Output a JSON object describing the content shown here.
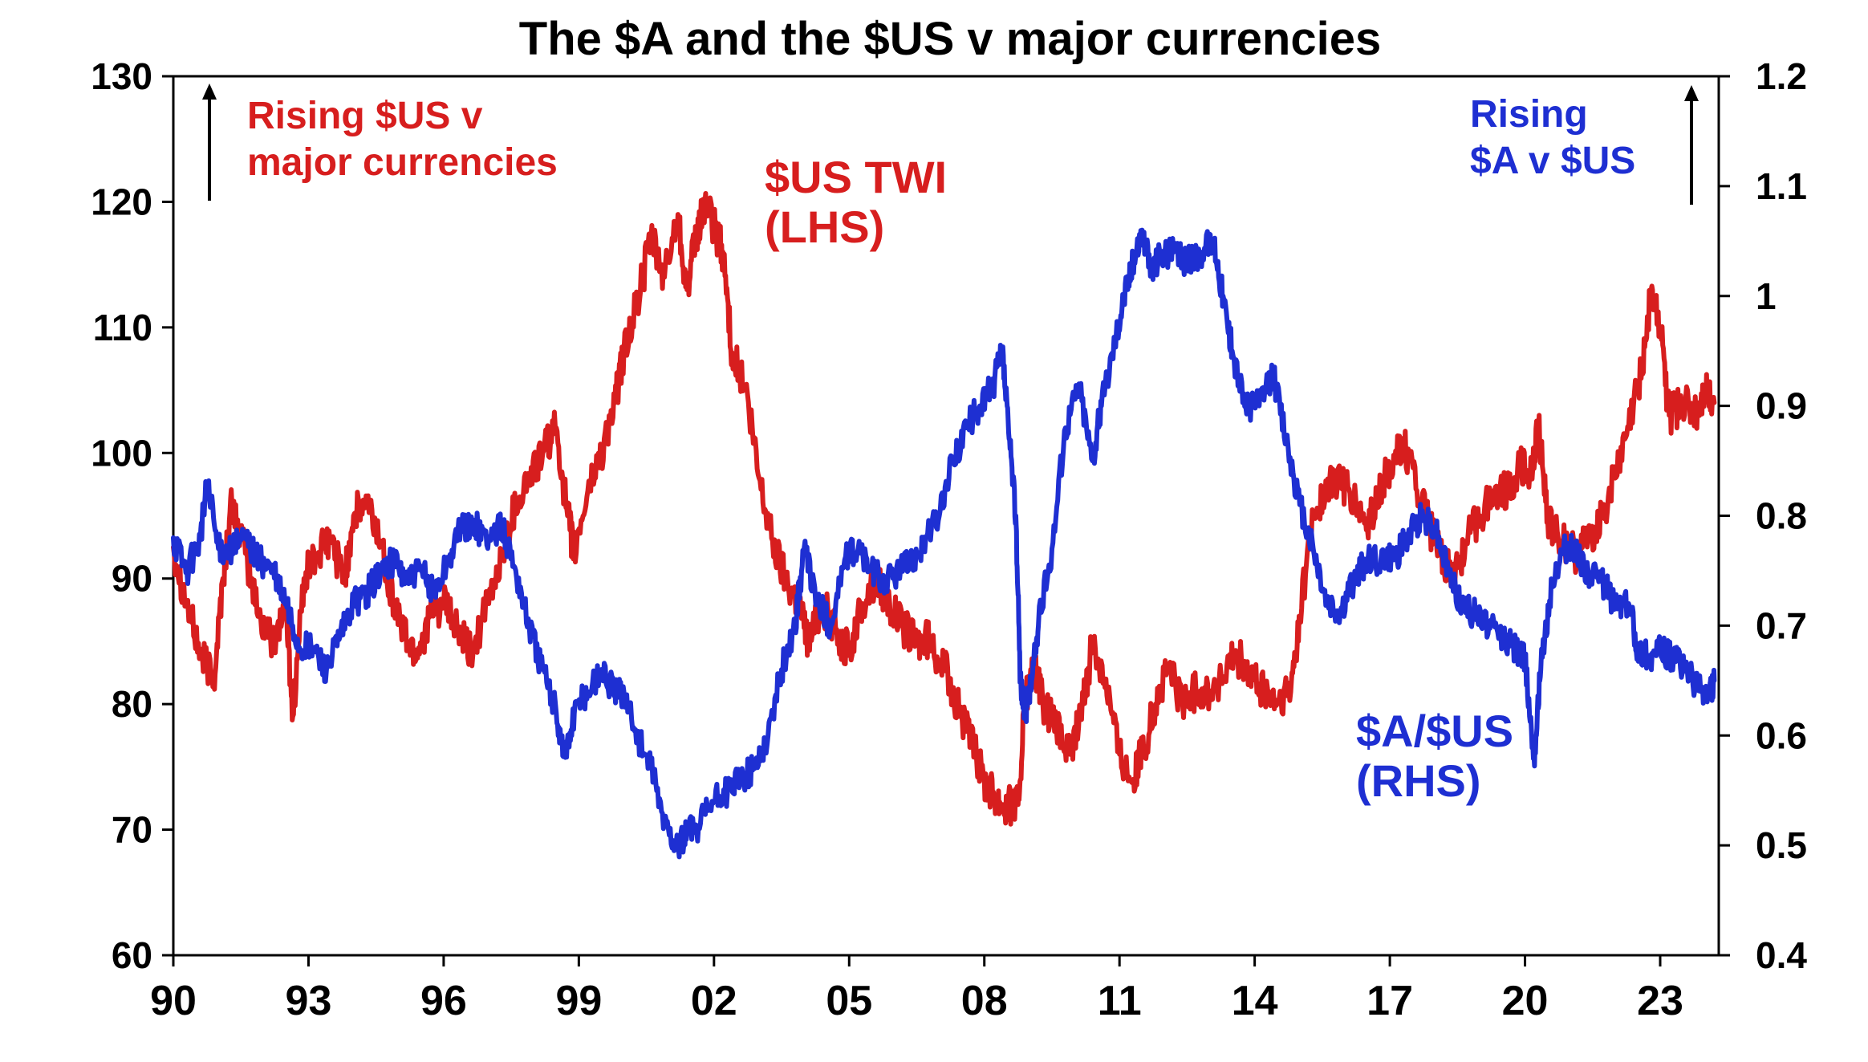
{
  "colors": {
    "usd_twi": "#d71e1e",
    "aud_usd": "#1e2fd2",
    "axis": "#000000"
  },
  "chart_data": {
    "type": "line",
    "title": "The $A and the $US v major currencies",
    "x_tick_labels": [
      "90",
      "93",
      "96",
      "99",
      "02",
      "05",
      "08",
      "11",
      "14",
      "17",
      "20",
      "23"
    ],
    "x_tick_years": [
      1990,
      1993,
      1996,
      1999,
      2002,
      2005,
      2008,
      2011,
      2014,
      2017,
      2020,
      2023
    ],
    "xlim": [
      1990,
      2024.3
    ],
    "y_left": {
      "ylim": [
        60,
        130
      ],
      "ticks": [
        "130",
        "120",
        "110",
        "100",
        "90",
        "80",
        "70",
        "60"
      ]
    },
    "y_right": {
      "ylim": [
        0.4,
        1.2
      ],
      "ticks": [
        "1.2",
        "1.1",
        "1",
        "0.9",
        "0.8",
        "0.7",
        "0.6",
        "0.5",
        "0.4"
      ]
    },
    "series": [
      {
        "name": "$US TWI (LHS)",
        "label_lines": [
          "$US TWI",
          "(LHS)"
        ],
        "axis": "left",
        "x": [
          1990.0,
          1990.3,
          1990.6,
          1990.9,
          1991.1,
          1991.3,
          1991.6,
          1991.9,
          1992.2,
          1992.5,
          1992.65,
          1992.9,
          1993.2,
          1993.5,
          1993.8,
          1994.0,
          1994.3,
          1994.6,
          1994.9,
          1995.2,
          1995.4,
          1995.7,
          1996.0,
          1996.3,
          1996.6,
          1997.0,
          1997.3,
          1997.6,
          1997.9,
          1998.2,
          1998.5,
          1998.75,
          1998.9,
          1999.2,
          1999.5,
          1999.8,
          2000.0,
          2000.3,
          2000.6,
          2000.9,
          2001.2,
          2001.4,
          2001.6,
          2001.8,
          2002.0,
          2002.2,
          2002.4,
          2002.7,
          2003.0,
          2003.3,
          2003.6,
          2003.9,
          2004.1,
          2004.4,
          2004.7,
          2005.0,
          2005.3,
          2005.6,
          2005.9,
          2006.2,
          2006.5,
          2006.8,
          2007.1,
          2007.4,
          2007.7,
          2008.0,
          2008.2,
          2008.4,
          2008.6,
          2008.75,
          2008.9,
          2009.1,
          2009.3,
          2009.6,
          2009.9,
          2010.2,
          2010.4,
          2010.7,
          2011.0,
          2011.3,
          2011.5,
          2011.8,
          2012.1,
          2012.4,
          2012.7,
          2013.0,
          2013.3,
          2013.6,
          2013.9,
          2014.2,
          2014.5,
          2014.8,
          2015.0,
          2015.3,
          2015.6,
          2015.9,
          2016.2,
          2016.5,
          2016.8,
          2017.0,
          2017.3,
          2017.6,
          2017.9,
          2018.1,
          2018.4,
          2018.7,
          2019.0,
          2019.3,
          2019.6,
          2019.9,
          2020.1,
          2020.3,
          2020.5,
          2020.8,
          2021.1,
          2021.4,
          2021.7,
          2022.0,
          2022.3,
          2022.6,
          2022.8,
          2023.0,
          2023.2,
          2023.5,
          2023.8,
          2024.0,
          2024.2
        ],
        "values": [
          92.5,
          88,
          84,
          82,
          90,
          96,
          92,
          87,
          85,
          88,
          79,
          90,
          92,
          93,
          90,
          95,
          96,
          93,
          88,
          85,
          84,
          87,
          88,
          86,
          84,
          88,
          92,
          96,
          98,
          100,
          102,
          95,
          92,
          97,
          100,
          104,
          108,
          112,
          117,
          114,
          119,
          113,
          117,
          120,
          118,
          116,
          108,
          105,
          98,
          93,
          90,
          88,
          85,
          88,
          86,
          84,
          88,
          90,
          88,
          86,
          85,
          85,
          83,
          80,
          77,
          74,
          73,
          72,
          72,
          72,
          80,
          83,
          80,
          78,
          76,
          80,
          85,
          82,
          76,
          74,
          76,
          80,
          83,
          80,
          81,
          81,
          82,
          84,
          82,
          81,
          80,
          81,
          87,
          95,
          97,
          98,
          96,
          94,
          97,
          99,
          101,
          97,
          94,
          92,
          90,
          93,
          95,
          97,
          97,
          99,
          98,
          102,
          95,
          93,
          92,
          93,
          95,
          98,
          102,
          107,
          113,
          110,
          103,
          104,
          103,
          105,
          104
        ]
      },
      {
        "name": "$A/$US (RHS)",
        "label_lines": [
          "$A/$US",
          "(RHS)"
        ],
        "axis": "right",
        "x": [
          1990.0,
          1990.3,
          1990.6,
          1990.75,
          1991.0,
          1991.3,
          1991.6,
          1991.9,
          1992.2,
          1992.5,
          1992.8,
          1993.1,
          1993.4,
          1993.7,
          1994.0,
          1994.3,
          1994.6,
          1994.9,
          1995.2,
          1995.5,
          1995.8,
          1996.1,
          1996.4,
          1996.7,
          1997.0,
          1997.3,
          1997.6,
          1997.9,
          1998.2,
          1998.5,
          1998.7,
          1998.9,
          1999.2,
          1999.5,
          1999.8,
          2000.0,
          2000.3,
          2000.6,
          2000.9,
          2001.2,
          2001.4,
          2001.7,
          2002.0,
          2002.3,
          2002.6,
          2002.9,
          2003.2,
          2003.5,
          2003.8,
          2004.0,
          2004.3,
          2004.6,
          2004.9,
          2005.2,
          2005.5,
          2005.8,
          2006.1,
          2006.4,
          2006.7,
          2007.0,
          2007.3,
          2007.6,
          2007.9,
          2008.2,
          2008.4,
          2008.55,
          2008.7,
          2008.8,
          2008.9,
          2009.05,
          2009.2,
          2009.5,
          2009.8,
          2010.1,
          2010.4,
          2010.6,
          2010.9,
          2011.1,
          2011.3,
          2011.5,
          2011.7,
          2011.9,
          2012.2,
          2012.5,
          2012.8,
          2013.1,
          2013.3,
          2013.5,
          2013.8,
          2014.1,
          2014.4,
          2014.7,
          2015.0,
          2015.3,
          2015.6,
          2015.9,
          2016.2,
          2016.5,
          2016.8,
          2017.1,
          2017.4,
          2017.7,
          2018.0,
          2018.3,
          2018.6,
          2018.9,
          2019.2,
          2019.5,
          2019.8,
          2020.0,
          2020.2,
          2020.35,
          2020.6,
          2020.9,
          2021.1,
          2021.4,
          2021.7,
          2022.0,
          2022.3,
          2022.5,
          2022.75,
          2023.0,
          2023.3,
          2023.6,
          2023.9,
          2024.1,
          2024.2
        ],
        "values": [
          0.78,
          0.75,
          0.78,
          0.83,
          0.77,
          0.77,
          0.78,
          0.76,
          0.75,
          0.72,
          0.68,
          0.68,
          0.66,
          0.69,
          0.72,
          0.73,
          0.75,
          0.76,
          0.74,
          0.75,
          0.73,
          0.76,
          0.79,
          0.79,
          0.78,
          0.79,
          0.75,
          0.7,
          0.66,
          0.62,
          0.58,
          0.62,
          0.64,
          0.66,
          0.64,
          0.64,
          0.6,
          0.57,
          0.52,
          0.5,
          0.51,
          0.52,
          0.54,
          0.55,
          0.56,
          0.57,
          0.6,
          0.66,
          0.7,
          0.77,
          0.72,
          0.7,
          0.76,
          0.77,
          0.75,
          0.74,
          0.75,
          0.76,
          0.78,
          0.8,
          0.85,
          0.88,
          0.9,
          0.92,
          0.95,
          0.87,
          0.8,
          0.65,
          0.62,
          0.65,
          0.7,
          0.77,
          0.88,
          0.92,
          0.85,
          0.9,
          0.96,
          1.0,
          1.03,
          1.06,
          1.02,
          1.04,
          1.04,
          1.03,
          1.04,
          1.05,
          1.0,
          0.95,
          0.9,
          0.9,
          0.93,
          0.87,
          0.81,
          0.77,
          0.72,
          0.71,
          0.74,
          0.76,
          0.76,
          0.76,
          0.78,
          0.8,
          0.79,
          0.75,
          0.72,
          0.71,
          0.7,
          0.69,
          0.68,
          0.67,
          0.58,
          0.66,
          0.74,
          0.77,
          0.77,
          0.75,
          0.74,
          0.72,
          0.72,
          0.68,
          0.67,
          0.68,
          0.67,
          0.66,
          0.64,
          0.64,
          0.65
        ]
      }
    ],
    "annotations": {
      "left_arrow_text": [
        "Rising $US v",
        "major currencies"
      ],
      "right_arrow_text": [
        "Rising",
        "$A v $US"
      ]
    },
    "grid": false,
    "legend": "none"
  }
}
